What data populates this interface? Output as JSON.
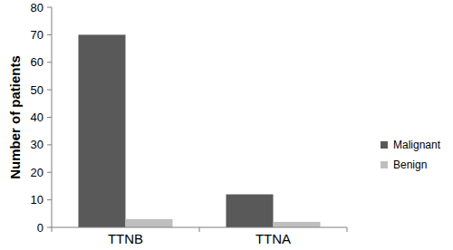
{
  "chart_data": {
    "type": "bar",
    "categories": [
      "TTNB",
      "TTNA"
    ],
    "series": [
      {
        "name": "Malignant",
        "color": "#595959",
        "values": [
          70,
          12
        ]
      },
      {
        "name": "Benign",
        "color": "#bfbfbf",
        "values": [
          3,
          2
        ]
      }
    ],
    "ylabel": "Number of patients",
    "ylim": [
      0,
      80
    ],
    "yticks": [
      0,
      10,
      20,
      30,
      40,
      50,
      60,
      70,
      80
    ],
    "grid": false,
    "legend": "right"
  }
}
